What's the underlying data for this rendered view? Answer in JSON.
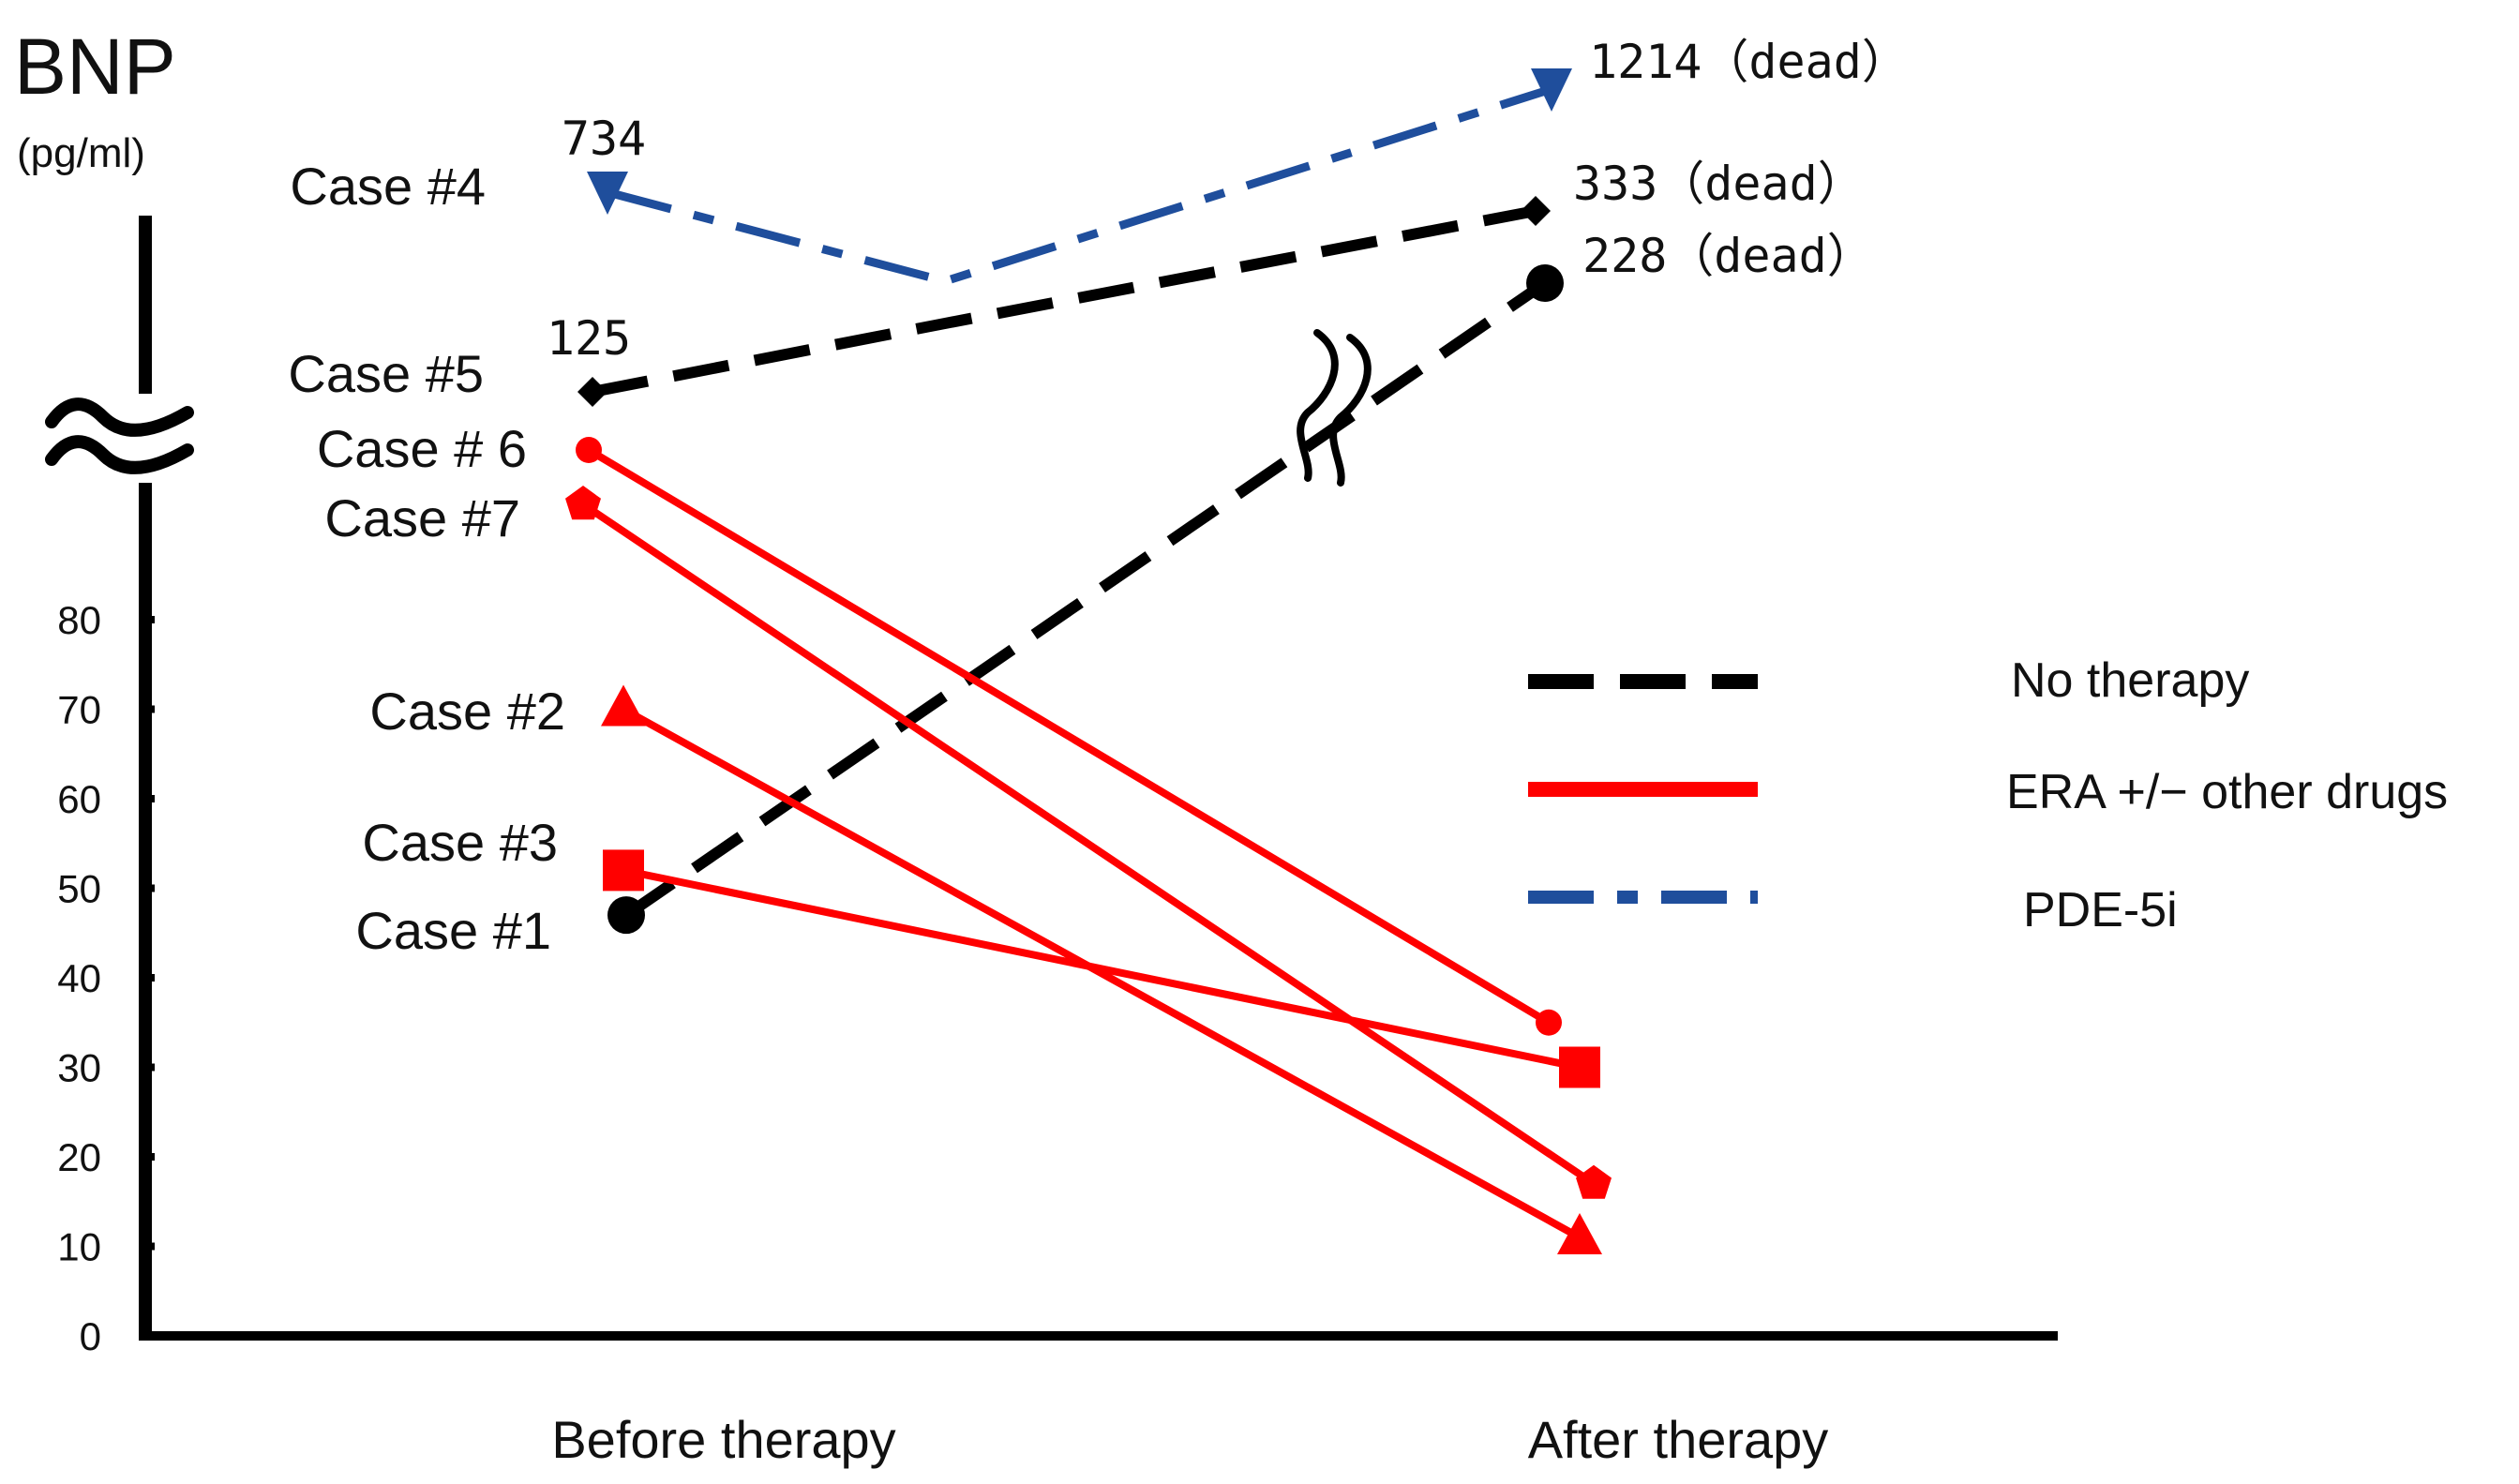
{
  "chart_data": {
    "type": "line",
    "title": "BNP",
    "ylabel": "(pg/ml)",
    "ylim": [
      0,
      80
    ],
    "y_ticks": [
      "0",
      "10",
      "20",
      "30",
      "40",
      "50",
      "60",
      "70",
      "80"
    ],
    "y_axis_break": true,
    "categories": [
      "Before therapy",
      "After therapy"
    ],
    "legend": {
      "placement": "right",
      "entries": [
        {
          "label": "No therapy",
          "style": "dashed",
          "color": "#000000"
        },
        {
          "label": "ERA +/− other drugs",
          "style": "solid",
          "color": "#ff0000"
        },
        {
          "label": "PDE-5i",
          "style": "dash-dot",
          "color": "#1f4e9c"
        }
      ]
    },
    "series": [
      {
        "name": "Case #1",
        "group": "No therapy",
        "marker": "circle",
        "values": [
          47,
          228
        ],
        "value_labels": [
          "",
          "228（dead）"
        ]
      },
      {
        "name": "Case #2",
        "group": "ERA +/− other drugs",
        "marker": "triangle",
        "values": [
          70,
          11
        ]
      },
      {
        "name": "Case #3",
        "group": "ERA +/− other drugs",
        "marker": "square",
        "values": [
          52,
          30
        ]
      },
      {
        "name": "Case #4",
        "group": "PDE-5i",
        "marker": "triangle-down",
        "values": [
          734,
          1214
        ],
        "value_labels": [
          "734",
          "1214（dead）"
        ]
      },
      {
        "name": "Case #5",
        "group": "No therapy",
        "marker": "diamond",
        "values": [
          125,
          333
        ],
        "value_labels": [
          "125",
          "333（dead）"
        ]
      },
      {
        "name": "Case # 6",
        "group": "ERA +/− other drugs",
        "marker": "circle-small",
        "values": [
          99,
          35
        ]
      },
      {
        "name": "Case #7",
        "group": "ERA +/− other drugs",
        "marker": "pentagon",
        "values": [
          93,
          17
        ]
      }
    ]
  }
}
